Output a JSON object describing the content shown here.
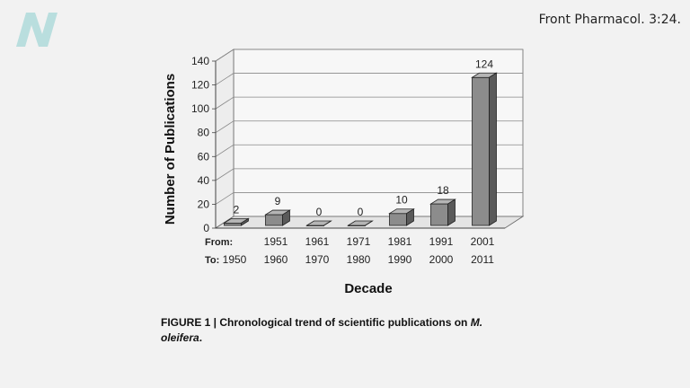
{
  "citation": "Front Pharmacol. 3:24.",
  "logo": {
    "icon": "n-logo-icon",
    "color": "#b9dede"
  },
  "caption": {
    "prefix": "FIGURE 1 | Chronological trend of scientific publications on ",
    "species_line1": "M.",
    "species_line2": "oleifera",
    "suffix": "."
  },
  "chart_data": {
    "type": "bar",
    "title": "",
    "xlabel": "Decade",
    "ylabel": "Number of Publications",
    "row_labels": {
      "from": "From:",
      "to": "To:"
    },
    "from_labels": [
      "",
      "1951",
      "1961",
      "1971",
      "1981",
      "1991",
      "2001"
    ],
    "to_labels": [
      "1950",
      "1960",
      "1970",
      "1980",
      "1990",
      "2000",
      "2011"
    ],
    "values": [
      2,
      9,
      0,
      0,
      10,
      18,
      124
    ],
    "ylim": [
      0,
      140
    ],
    "yticks": [
      0,
      20,
      40,
      60,
      80,
      100,
      120,
      140
    ],
    "grid": true,
    "style": "3d-bar",
    "colors": {
      "bar_front": "#8c8c8c",
      "bar_side": "#5a5a5a",
      "bar_top": "#b5b5b5",
      "grid": "#888888"
    }
  }
}
